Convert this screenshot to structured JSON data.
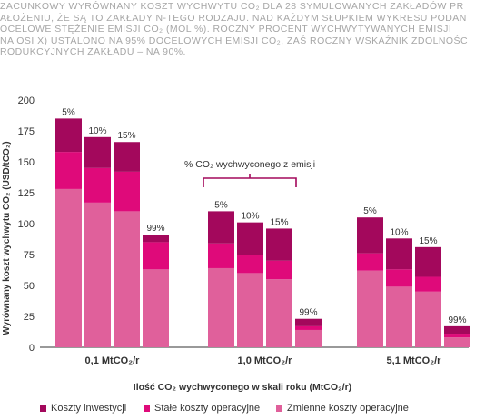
{
  "caption": {
    "lines": [
      "ZACUNKOWY WYRÓWNANY KOSZT WYCHWYTU CO₂ DLA 28 SYMULOWANYCH ZAKŁADÓW PR",
      "AŁOŻENIU, ŻE SĄ TO ZAKŁADY N-TEGO RODZAJU. NAD KAŻDYM SŁUPKIEM WYKRESU PODAN",
      "OCELOWE STĘŻENIE EMISJI CO₂ (MOL %). ROCZNY PROCENT WYCHWYTYWANYCH EMISJI",
      "NA OSI X) USTALONO NA 95% DOCELOWYCH EMISJI CO₂, ZAŚ ROCZNY WSKAŹNIK ZDOLNOŚC",
      "RODUKCYJNYCH ZAKŁADU – NA 90%."
    ]
  },
  "colors": {
    "investment": "#a3085c",
    "fixed": "#df0a7a",
    "variable": "#e0609b",
    "axis": "#333333",
    "annotation": "#a3085c"
  },
  "chart_data": {
    "type": "bar",
    "stacked": true,
    "ylabel": "Wyrównany koszt wychwytu CO₂ (USD/tCO₂)",
    "xlabel": "Ilość CO₂ wychwyconego w skali roku (MtCO₂/r)",
    "ylim": [
      0,
      200
    ],
    "yticks": [
      0,
      25,
      50,
      75,
      100,
      125,
      150,
      175,
      200
    ],
    "annotation": "% CO₂ wychwyconego z emisji",
    "groups": [
      {
        "label": "0,1 MtCO₂/r",
        "bars": [
          {
            "label": "5%",
            "variable": 128,
            "fixed": 30,
            "investment": 27
          },
          {
            "label": "10%",
            "variable": 117,
            "fixed": 28,
            "investment": 25
          },
          {
            "label": "15%",
            "variable": 110,
            "fixed": 32,
            "investment": 24
          },
          {
            "label": "99%",
            "variable": 63,
            "fixed": 22,
            "investment": 6
          }
        ]
      },
      {
        "label": "1,0 MtCO₂/r",
        "bars": [
          {
            "label": "5%",
            "variable": 64,
            "fixed": 20,
            "investment": 26
          },
          {
            "label": "10%",
            "variable": 60,
            "fixed": 15,
            "investment": 26
          },
          {
            "label": "15%",
            "variable": 55,
            "fixed": 15,
            "investment": 26
          },
          {
            "label": "99%",
            "variable": 14,
            "fixed": 3,
            "investment": 6
          }
        ]
      },
      {
        "label": "5,1 MtCO₂/r",
        "bars": [
          {
            "label": "5%",
            "variable": 62,
            "fixed": 14,
            "investment": 29
          },
          {
            "label": "10%",
            "variable": 49,
            "fixed": 14,
            "investment": 25
          },
          {
            "label": "15%",
            "variable": 45,
            "fixed": 12,
            "investment": 24
          },
          {
            "label": "99%",
            "variable": 8,
            "fixed": 3,
            "investment": 6
          }
        ]
      }
    ],
    "legend": [
      {
        "key": "investment",
        "label": "Koszty inwestycji"
      },
      {
        "key": "fixed",
        "label": "Stałe koszty operacyjne"
      },
      {
        "key": "variable",
        "label": "Zmienne koszty operacyjne"
      }
    ]
  }
}
